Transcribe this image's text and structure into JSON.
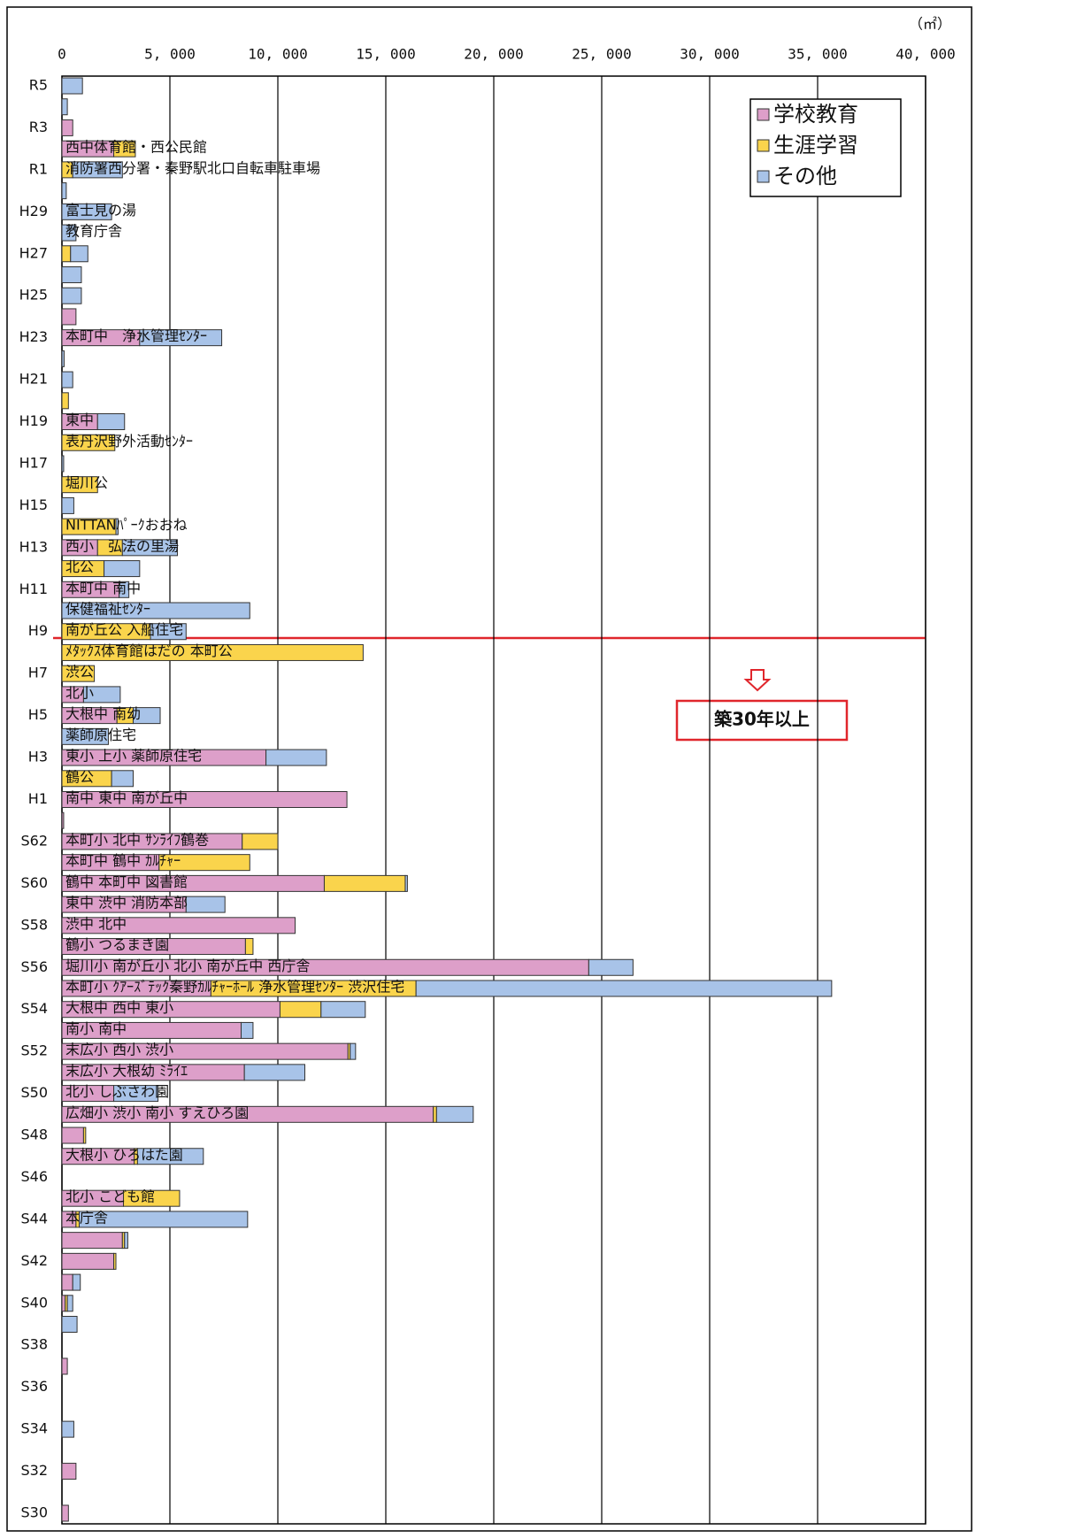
{
  "chart_data": {
    "type": "stacked_barh",
    "unit": "（㎡）",
    "annotation": "築30年以上",
    "legend": "upper right",
    "grid": true,
    "xlim": [
      0,
      40000
    ],
    "xticks": [
      0,
      {
        "value": 5000,
        "label": "5, 000"
      },
      {
        "value": 10000,
        "label": "10, 000"
      },
      {
        "value": 15000,
        "label": "15, 000"
      },
      {
        "value": 20000,
        "label": "20, 000"
      },
      {
        "value": 25000,
        "label": "25, 000"
      },
      {
        "value": 30000,
        "label": "30, 000"
      },
      {
        "value": 35000,
        "label": "35, 000"
      },
      {
        "value": 40000,
        "label": "40, 000"
      }
    ],
    "categories": [
      "R5",
      null,
      "R3",
      null,
      "R1",
      null,
      "H29",
      null,
      "H27",
      null,
      "H25",
      null,
      "H23",
      null,
      "H21",
      null,
      "H19",
      null,
      "H17",
      null,
      "H15",
      null,
      "H13",
      null,
      "H11",
      null,
      "H9",
      null,
      "H7",
      null,
      "H5",
      null,
      "H3",
      null,
      "H1",
      null,
      "S62",
      null,
      "S60",
      null,
      "S58",
      null,
      "S56",
      null,
      "S54",
      null,
      "S52",
      null,
      "S50",
      null,
      "S48",
      null,
      "S46",
      null,
      "S44",
      null,
      "S42",
      null,
      "S40",
      null,
      "S38",
      null,
      "S36",
      null,
      "S34",
      null,
      "S32",
      null,
      "S30"
    ],
    "series": [
      {
        "name": "学校教育",
        "color": "#dd9fc9",
        "values": [
          0,
          0,
          500,
          2400,
          0,
          0,
          0,
          0,
          0,
          0,
          0,
          650,
          3600,
          0,
          0,
          0,
          1650,
          0,
          0,
          0,
          0,
          0,
          1650,
          0,
          2650,
          0,
          0,
          0,
          0,
          1000,
          2550,
          0,
          9450,
          0,
          13200,
          80,
          8350,
          4500,
          12150,
          5750,
          10800,
          8500,
          24400,
          6900,
          10100,
          8300,
          13250,
          8450,
          2400,
          17200,
          1000,
          3350,
          0,
          2850,
          650,
          2800,
          2400,
          500,
          150,
          0,
          0,
          250,
          0,
          0,
          0,
          0,
          650,
          0,
          300
        ]
      },
      {
        "name": "生涯学習",
        "color": "#fad44c",
        "values": [
          0,
          0,
          0,
          1000,
          500,
          0,
          0,
          0,
          400,
          0,
          0,
          0,
          0,
          0,
          0,
          300,
          0,
          2450,
          0,
          1650,
          0,
          2500,
          1150,
          1950,
          0,
          0,
          4100,
          13950,
          1500,
          0,
          750,
          0,
          0,
          2300,
          0,
          0,
          1650,
          4200,
          3750,
          0,
          0,
          350,
          0,
          9500,
          1900,
          0,
          100,
          0,
          0,
          150,
          100,
          150,
          0,
          2600,
          150,
          100,
          100,
          0,
          100,
          0,
          0,
          0,
          0,
          0,
          0,
          0,
          0,
          0,
          0
        ]
      },
      {
        "name": "その他",
        "color": "#a8c3e8",
        "values": [
          950,
          250,
          0,
          0,
          2300,
          200,
          2300,
          650,
          800,
          900,
          900,
          0,
          3800,
          100,
          500,
          0,
          1250,
          0,
          80,
          0,
          550,
          100,
          2550,
          1650,
          450,
          8700,
          1650,
          0,
          0,
          1700,
          1250,
          2150,
          2800,
          1000,
          0,
          0,
          0,
          0,
          100,
          1800,
          0,
          0,
          2050,
          19250,
          2050,
          550,
          250,
          2800,
          2050,
          1700,
          0,
          3050,
          0,
          0,
          7800,
          150,
          0,
          350,
          250,
          700,
          0,
          0,
          0,
          0,
          550,
          0,
          0,
          0,
          0
        ]
      }
    ],
    "bar_labels": [
      null,
      null,
      null,
      "西中体育館・西公民館",
      "消防署西分署・秦野駅北口自転車駐車場",
      null,
      "富士見の湯",
      "教育庁舎",
      null,
      null,
      null,
      null,
      "本町中　浄水管理ｾﾝﾀｰ",
      null,
      null,
      null,
      "東中",
      "表丹沢野外活動ｾﾝﾀｰ",
      null,
      "堀川公",
      null,
      "NITTANﾊﾟｰｸおおね",
      "西小　弘法の里湯",
      "北公",
      "本町中 南中",
      "保健福祉ｾﾝﾀｰ",
      "南が丘公 入船住宅",
      "ﾒﾀｯｸｽ体育館はだの 本町公",
      "渋公",
      "北小",
      "大根中 南幼",
      "薬師原住宅",
      "東小 上小 薬師原住宅",
      "鶴公",
      "南中 東中 南が丘中",
      null,
      "本町小 北中 ｻﾝﾗｲﾌ鶴巻",
      "本町中 鶴中 ｶﾙﾁｬｰ",
      "鶴中 本町中 図書館",
      "東中 渋中 消防本部",
      "渋中 北中",
      "鶴小 つるまき園",
      "堀川小 南が丘小 北小 南が丘中 西庁舎",
      "本町小 ｸｱｰｽﾞﾃｯｸ秦野ｶﾙﾁｬｰﾎｰﾙ 浄水管理ｾﾝﾀｰ 渋沢住宅",
      "大根中 西中 東小",
      "南小 南中",
      "末広小 西小 渋小",
      "末広小 大根幼 ﾐﾗｲｴ",
      "北小 しぶさわ園",
      "広畑小 渋小 南小 すえひろ園",
      null,
      "大根小 ひろはた園",
      null,
      "北小 こども館",
      "本庁舎",
      null,
      null,
      null,
      null,
      null,
      null,
      null,
      null,
      null,
      null,
      null,
      null,
      null,
      null
    ]
  }
}
